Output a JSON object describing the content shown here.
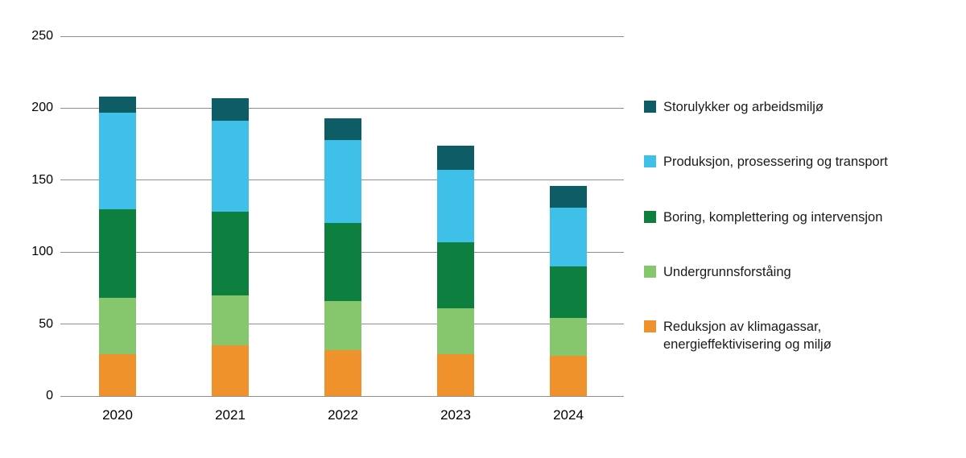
{
  "chart_data": {
    "type": "bar",
    "stacked": true,
    "title": "",
    "xlabel": "",
    "ylabel": "",
    "categories": [
      "2020",
      "2021",
      "2022",
      "2023",
      "2024"
    ],
    "series": [
      {
        "name": "Reduksjon av klimagassar, energieffektivisering og miljø",
        "color": "#f0922b",
        "values": [
          29,
          35,
          32,
          29,
          28
        ]
      },
      {
        "name": "Undergrunnsforståing",
        "color": "#86c66d",
        "values": [
          39,
          35,
          34,
          32,
          26
        ]
      },
      {
        "name": "Boring, komplettering og intervensjon",
        "color": "#0d7f3f",
        "values": [
          62,
          58,
          54,
          46,
          36
        ]
      },
      {
        "name": "Produksjon, prosessering og transport",
        "color": "#3fc0e8",
        "values": [
          67,
          63,
          58,
          50,
          41
        ]
      },
      {
        "name": "Storulykker og arbeidsmiljø",
        "color": "#0e5c66",
        "values": [
          11,
          16,
          15,
          17,
          15
        ]
      }
    ],
    "ylim": [
      0,
      250
    ],
    "yticks": [
      0,
      50,
      100,
      150,
      200,
      250
    ],
    "grid": true,
    "legend_position": "right",
    "legend_order": [
      4,
      3,
      2,
      1,
      0
    ]
  }
}
